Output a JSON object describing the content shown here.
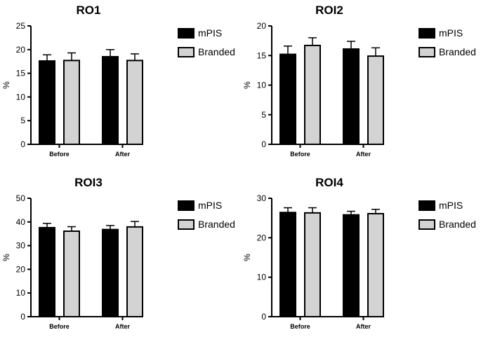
{
  "chart_data": [
    {
      "type": "bar",
      "title": "RO1",
      "categories": [
        "Before",
        "After"
      ],
      "ylabel": "%",
      "xlabel": "",
      "ylim": [
        0,
        25
      ],
      "yticks": [
        "0",
        "5",
        "10",
        "15",
        "20",
        "25"
      ],
      "series": [
        {
          "name": "mPIS",
          "values": [
            17.6,
            18.5
          ],
          "errors": [
            1.3,
            1.5
          ],
          "color": "#000000"
        },
        {
          "name": "Branded",
          "values": [
            17.7,
            17.7
          ],
          "errors": [
            1.6,
            1.4
          ],
          "color": "#d3d3d3"
        }
      ],
      "legend": "right"
    },
    {
      "type": "bar",
      "title": "ROI2",
      "categories": [
        "Before",
        "After"
      ],
      "ylabel": "%",
      "xlabel": "",
      "ylim": [
        0,
        20
      ],
      "yticks": [
        "0",
        "5",
        "10",
        "15",
        "20"
      ],
      "series": [
        {
          "name": "mPIS",
          "values": [
            15.2,
            16.1
          ],
          "errors": [
            1.4,
            1.3
          ],
          "color": "#000000"
        },
        {
          "name": "Branded",
          "values": [
            16.7,
            14.9
          ],
          "errors": [
            1.3,
            1.4
          ],
          "color": "#d3d3d3"
        }
      ],
      "legend": "right"
    },
    {
      "type": "bar",
      "title": "ROI3",
      "categories": [
        "Before",
        "After"
      ],
      "ylabel": "%",
      "xlabel": "",
      "ylim": [
        0,
        50
      ],
      "yticks": [
        "0",
        "10",
        "20",
        "30",
        "40",
        "50"
      ],
      "series": [
        {
          "name": "mPIS",
          "values": [
            37.6,
            36.8
          ],
          "errors": [
            1.8,
            1.7
          ],
          "color": "#000000"
        },
        {
          "name": "Branded",
          "values": [
            36.1,
            37.9
          ],
          "errors": [
            1.9,
            2.3
          ],
          "color": "#d3d3d3"
        }
      ],
      "legend": "right"
    },
    {
      "type": "bar",
      "title": "ROI4",
      "categories": [
        "Before",
        "After"
      ],
      "ylabel": "%",
      "xlabel": "",
      "ylim": [
        0,
        30
      ],
      "yticks": [
        "0",
        "10",
        "20",
        "30"
      ],
      "series": [
        {
          "name": "mPIS",
          "values": [
            26.4,
            25.8
          ],
          "errors": [
            1.2,
            0.9
          ],
          "color": "#000000"
        },
        {
          "name": "Branded",
          "values": [
            26.3,
            26.1
          ],
          "errors": [
            1.3,
            1.1
          ],
          "color": "#d3d3d3"
        }
      ],
      "legend": "right"
    }
  ]
}
